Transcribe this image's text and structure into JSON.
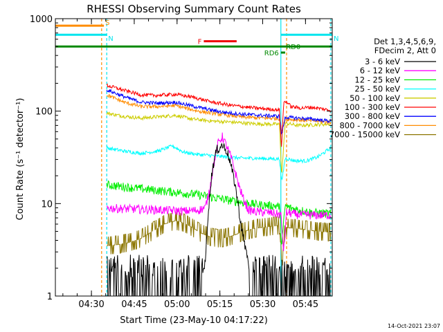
{
  "chart_data": {
    "type": "line",
    "title": "RHESSI Observing Summary Count Rates",
    "xlabel": "Start Time (23-May-10 04:17:22)",
    "ylabel": "Count Rate (s⁻¹ detector⁻¹)",
    "yscale": "log",
    "x_units": "minutes after 04:17:22",
    "xlim": [
      0,
      97
    ],
    "ylim": [
      1,
      1000
    ],
    "x_ticks": [
      {
        "x": 12.63,
        "label": "04:30"
      },
      {
        "x": 27.63,
        "label": "04:45"
      },
      {
        "x": 42.63,
        "label": "05:00"
      },
      {
        "x": 57.63,
        "label": "05:15"
      },
      {
        "x": 72.63,
        "label": "05:30"
      },
      {
        "x": 87.63,
        "label": "05:45"
      }
    ],
    "y_ticks": [
      {
        "y": 1,
        "label": "1"
      },
      {
        "y": 10,
        "label": "10"
      },
      {
        "y": 100,
        "label": "100"
      },
      {
        "y": 1000,
        "label": "1000"
      }
    ],
    "grid": false,
    "legend_position": "right",
    "legend_header": [
      "Det 1,3,4,5,6,9,",
      "FDecim 2, Att 0"
    ],
    "data_start_x": 18,
    "data_end_x": 96.5,
    "eclipse_markers": [
      18,
      79,
      96.5
    ],
    "saa_markers": [
      16.2,
      81
    ],
    "flags": [
      {
        "label": "S",
        "x_start": 0,
        "x_end": 17,
        "level": 840,
        "color": "#ff8c00"
      },
      {
        "label": "N",
        "x_start": 0,
        "x_end": 18,
        "level": 670,
        "color": "#00e5ee"
      },
      {
        "label": "N",
        "x_start": 79,
        "x_end": 97,
        "level": 670,
        "color": "#00e5ee"
      },
      {
        "label": "F",
        "x_start": 52,
        "x_end": 63.5,
        "level": 570,
        "color": "#ee0000"
      },
      {
        "label": "RD0",
        "x_start": 0,
        "x_end": 97,
        "level": 500,
        "color": "#008800"
      },
      {
        "label": "RD6",
        "x_start": 79,
        "x_end": 80.5,
        "level": 430,
        "color": "#008800"
      }
    ],
    "series": [
      {
        "name": "3 - 6 keV",
        "color": "#000000",
        "x": [
          18,
          30,
          40,
          50,
          52.5,
          53.5,
          55,
          56.5,
          58.5,
          60,
          61,
          62,
          63,
          64,
          65,
          66,
          67.5,
          68.5,
          70,
          75,
          80,
          90,
          96.5
        ],
        "y": [
          1,
          1,
          1.3,
          1.7,
          2.2,
          8,
          24,
          38,
          43,
          38,
          30,
          22,
          16,
          10,
          6,
          4,
          2.5,
          1.6,
          1.2,
          1,
          1,
          1,
          1
        ]
      },
      {
        "name": "6 - 12 keV",
        "color": "#ff00ff",
        "x": [
          18,
          25,
          35,
          45,
          50,
          52.5,
          54,
          55.5,
          57,
          58.5,
          60,
          61.5,
          63,
          64.5,
          66,
          67.5,
          70,
          75,
          79,
          80,
          81,
          85,
          90,
          96.5
        ],
        "y": [
          9,
          8.8,
          8.6,
          8.3,
          8.5,
          9,
          14,
          27,
          45,
          53,
          42,
          32,
          22,
          15,
          11,
          8.6,
          8.2,
          8,
          7.6,
          3,
          8,
          7.6,
          7.5,
          7.5
        ]
      },
      {
        "name": "12 - 25 keV",
        "color": "#00ee00",
        "x": [
          18,
          30,
          40,
          50,
          60,
          70,
          78.5,
          79.3,
          80.5,
          82,
          90,
          96.5
        ],
        "y": [
          16,
          14.5,
          13.5,
          12.5,
          11,
          9.8,
          9.4,
          3.5,
          9.5,
          9,
          8,
          7.8
        ]
      },
      {
        "name": "25 - 50 keV",
        "color": "#00ffff",
        "x": [
          18,
          24,
          30,
          36,
          41,
          45,
          50,
          55,
          60,
          65,
          70,
          75,
          78.5,
          79.3,
          80.5,
          84,
          88,
          92,
          96.5
        ],
        "y": [
          40,
          37,
          35,
          37,
          42,
          36,
          34,
          33,
          32,
          31,
          31,
          30.5,
          30.5,
          17,
          31,
          29,
          29,
          32,
          40
        ]
      },
      {
        "name": "50 - 100 keV",
        "color": "#cdcd00",
        "x": [
          18,
          24,
          30,
          36,
          42,
          48,
          55,
          62,
          70,
          78.5,
          79.3,
          80.5,
          85,
          90,
          96.5
        ],
        "y": [
          95,
          88,
          84,
          87,
          90,
          82,
          78,
          76,
          73,
          72,
          20,
          74,
          70,
          71,
          73
        ]
      },
      {
        "name": "100 - 300 keV",
        "color": "#ff0000",
        "x": [
          18,
          25,
          30,
          35,
          42,
          48,
          55,
          62,
          70,
          78.5,
          79.2,
          80,
          81,
          82.5,
          86,
          90,
          96.5
        ],
        "y": [
          190,
          165,
          150,
          148,
          152,
          142,
          125,
          115,
          108,
          103,
          40,
          125,
          127,
          112,
          108,
          110,
          102
        ]
      },
      {
        "name": "300 - 800 keV",
        "color": "#0000ff",
        "x": [
          18,
          25,
          30,
          36,
          42,
          50,
          58,
          65,
          72,
          78.5,
          79.3,
          80.5,
          85,
          90,
          96.5
        ],
        "y": [
          170,
          140,
          125,
          122,
          125,
          110,
          98,
          93,
          90,
          88,
          55,
          86,
          84,
          82,
          78
        ]
      },
      {
        "name": "800 - 7000 keV",
        "color": "#ff8c00",
        "x": [
          18,
          24,
          30,
          36,
          42,
          50,
          58,
          66,
          74,
          78.5,
          79.3,
          80.5,
          86,
          92,
          96.5
        ],
        "y": [
          150,
          125,
          112,
          112,
          115,
          100,
          92,
          86,
          84,
          83,
          60,
          82,
          80,
          78,
          75
        ]
      },
      {
        "name": "7000 - 15000 keV",
        "color": "#8b7500",
        "x": [
          18,
          22,
          26,
          30,
          34,
          38,
          42,
          45,
          48,
          51,
          54,
          57,
          60,
          63,
          66,
          70,
          74,
          78.5,
          79.3,
          80.5,
          84,
          88,
          92,
          96.5
        ],
        "y": [
          3.5,
          3.6,
          3.8,
          4.2,
          5,
          6,
          6.5,
          6.2,
          5.5,
          4.8,
          4.4,
          4.2,
          4.3,
          4.6,
          5,
          5.4,
          5.6,
          5.8,
          2.2,
          5.5,
          5.4,
          5.2,
          5,
          4.9
        ]
      }
    ]
  },
  "footer": {
    "timestamp": "14-Oct-2021 23:07"
  }
}
